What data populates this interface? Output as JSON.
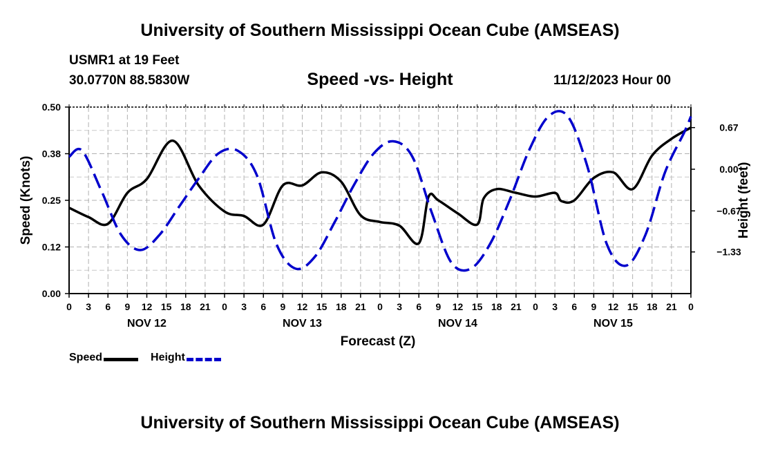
{
  "header": {
    "title": "University of Southern Mississippi Ocean Cube (AMSEAS)",
    "station": "USMR1 at 19 Feet",
    "location": "30.0770N  88.5830W",
    "run_time": "11/12/2023 Hour 00"
  },
  "footer": {
    "title": "University of Southern Mississippi Ocean Cube (AMSEAS)"
  },
  "legend": [
    {
      "label": "Speed",
      "color": "#000000",
      "style": "solid"
    },
    {
      "label": "Height",
      "color": "#0000cc",
      "style": "dashed"
    }
  ],
  "chart_data": {
    "type": "line",
    "title": "Speed -vs- Height",
    "xlabel": "Forecast (Z)",
    "ylabel": "Speed (Knots)",
    "y2label": "Height (feet)",
    "xlim": [
      0,
      96
    ],
    "ylim": [
      0,
      0.5
    ],
    "y2lim": [
      -2.0,
      1.0
    ],
    "x_tick_labels": [
      "0",
      "3",
      "6",
      "9",
      "12",
      "15",
      "18",
      "21",
      "0",
      "3",
      "6",
      "9",
      "12",
      "15",
      "18",
      "21",
      "0",
      "3",
      "6",
      "9",
      "12",
      "15",
      "18",
      "21",
      "0",
      "3",
      "6",
      "9",
      "12",
      "15",
      "18",
      "21",
      "0"
    ],
    "day_labels": [
      "NOV 12",
      "NOV 13",
      "NOV 14",
      "NOV 15"
    ],
    "y_ticks": [
      0,
      0.125,
      0.25,
      0.375,
      0.5
    ],
    "y_tick_labels": [
      "0.00",
      "0.12",
      "0.25",
      "0.38",
      "0.50"
    ],
    "y2_ticks": [
      0.67,
      0.0,
      -0.67,
      -1.33
    ],
    "y2_tick_labels": [
      "0.67",
      "0.00",
      "−0.67",
      "−1.33"
    ],
    "grid": true,
    "series": [
      {
        "name": "Speed",
        "axis": "left",
        "color": "#000000",
        "style": "solid",
        "x": [
          0,
          3,
          6,
          9,
          12,
          16,
          20,
          24,
          27,
          30,
          33,
          36,
          39,
          42,
          45,
          48,
          51,
          54,
          55.5,
          57,
          60,
          63,
          64,
          66,
          69,
          72,
          75,
          76,
          78,
          81,
          84,
          87,
          90,
          93,
          96
        ],
        "values": [
          0.23,
          0.205,
          0.187,
          0.27,
          0.307,
          0.41,
          0.29,
          0.22,
          0.208,
          0.185,
          0.29,
          0.29,
          0.325,
          0.3,
          0.21,
          0.192,
          0.182,
          0.135,
          0.26,
          0.25,
          0.215,
          0.185,
          0.255,
          0.28,
          0.27,
          0.26,
          0.27,
          0.248,
          0.25,
          0.31,
          0.325,
          0.28,
          0.37,
          0.415,
          0.445
        ]
      },
      {
        "name": "Height",
        "axis": "right",
        "color": "#0000cc",
        "style": "dashed",
        "x": [
          0,
          2,
          5,
          8,
          11,
          14,
          17,
          20,
          23,
          26,
          29,
          32,
          35,
          38,
          41,
          44,
          47,
          50,
          53,
          56,
          59,
          62,
          65,
          68,
          71,
          74,
          77,
          80,
          83,
          86,
          89,
          92,
          95,
          96
        ],
        "values": [
          0.2,
          0.3,
          -0.35,
          -1.05,
          -1.3,
          -1.05,
          -0.6,
          -0.15,
          0.25,
          0.3,
          -0.1,
          -1.2,
          -1.6,
          -1.4,
          -0.85,
          -0.25,
          0.25,
          0.45,
          0.2,
          -0.7,
          -1.5,
          -1.6,
          -1.2,
          -0.5,
          0.3,
          0.85,
          0.85,
          0.05,
          -1.2,
          -1.55,
          -1.05,
          -0.05,
          0.6,
          0.85
        ]
      }
    ]
  }
}
